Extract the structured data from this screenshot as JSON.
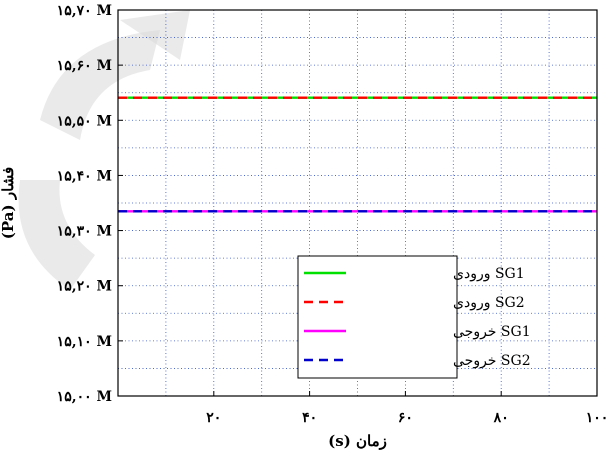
{
  "chart_data": {
    "type": "line",
    "title": "",
    "xlabel": "زمان (s)",
    "ylabel": "فشار (Pa)",
    "xlim": [
      0,
      100
    ],
    "ylim": [
      15.0,
      15.7
    ],
    "y_unit_suffix": "M",
    "x_ticks": [
      {
        "value": 20,
        "label": "۲۰"
      },
      {
        "value": 40,
        "label": "۴۰"
      },
      {
        "value": 60,
        "label": "۶۰"
      },
      {
        "value": 80,
        "label": "۸۰"
      },
      {
        "value": 100,
        "label": "۱۰۰"
      }
    ],
    "y_ticks": [
      {
        "value": 15.0,
        "label": "۱۵,۰۰ M"
      },
      {
        "value": 15.1,
        "label": "۱۵,۱۰ M"
      },
      {
        "value": 15.2,
        "label": "۱۵,۲۰ M"
      },
      {
        "value": 15.3,
        "label": "۱۵,۳۰ M"
      },
      {
        "value": 15.4,
        "label": "۱۵,۴۰ M"
      },
      {
        "value": 15.5,
        "label": "۱۵,۵۰ M"
      },
      {
        "value": 15.6,
        "label": "۱۵,۶۰ M"
      },
      {
        "value": 15.7,
        "label": "۱۵,۷۰ M"
      }
    ],
    "grid": true,
    "legend_position": "lower-right",
    "series": [
      {
        "name": "SG1 ورودی",
        "color": "#00e000",
        "dash": "solid",
        "x": [
          0,
          100
        ],
        "y": [
          15.541,
          15.541
        ]
      },
      {
        "name": "SG2 ورودی",
        "color": "#ff0000",
        "dash": "dashed",
        "x": [
          0,
          100
        ],
        "y": [
          15.541,
          15.541
        ]
      },
      {
        "name": "SG1 خروجی",
        "color": "#ff00ff",
        "dash": "solid",
        "x": [
          0,
          100
        ],
        "y": [
          15.335,
          15.335
        ]
      },
      {
        "name": "SG2 خروجی",
        "color": "#0000cc",
        "dash": "dashed",
        "x": [
          0,
          100
        ],
        "y": [
          15.335,
          15.335
        ]
      }
    ]
  }
}
